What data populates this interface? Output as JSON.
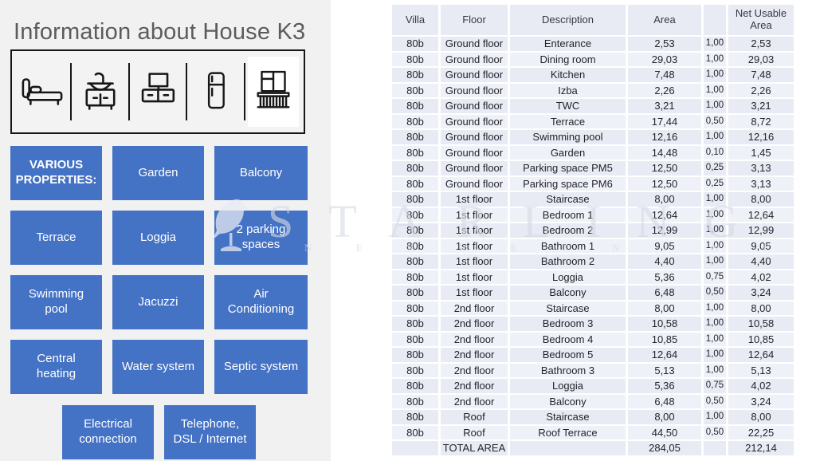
{
  "left_panel": {
    "title": "Information about House K3",
    "amenity_icons": [
      "bed-icon",
      "bathroom-vanity-icon",
      "tv-stand-icon",
      "fridge-icon",
      "balcony-icon"
    ],
    "properties_header": "VARIOUS PROPERTIES:",
    "tiles": [
      "Garden",
      "Balcony",
      "Terrace",
      "Loggia",
      "2 parking spaces",
      "Swimming pool",
      "Jacuzzi",
      "Air Conditioning",
      "Central heating",
      "Water system",
      "Septic system"
    ],
    "bottom_tiles": [
      "Electrical connection",
      "Telephone, DSL / Internet"
    ]
  },
  "watermark": {
    "brand": "STARLING",
    "subtext": "N E K R E T N I N E",
    "logo": "starling-bird-logo"
  },
  "table": {
    "headers": [
      "Villa",
      "Floor",
      "Description",
      "Area",
      "",
      "Net Usable Area"
    ],
    "rows": [
      [
        "80b",
        "Ground floor",
        "Enterance",
        "2,53",
        "1,00",
        "2,53"
      ],
      [
        "80b",
        "Ground floor",
        "Dining room",
        "29,03",
        "1,00",
        "29,03"
      ],
      [
        "80b",
        "Ground floor",
        "Kitchen",
        "7,48",
        "1,00",
        "7,48"
      ],
      [
        "80b",
        "Ground floor",
        "Izba",
        "2,26",
        "1,00",
        "2,26"
      ],
      [
        "80b",
        "Ground floor",
        "TWC",
        "3,21",
        "1,00",
        "3,21"
      ],
      [
        "80b",
        "Ground floor",
        "Terrace",
        "17,44",
        "0,50",
        "8,72"
      ],
      [
        "80b",
        "Ground floor",
        "Swimming pool",
        "12,16",
        "1,00",
        "12,16"
      ],
      [
        "80b",
        "Ground floor",
        "Garden",
        "14,48",
        "0,10",
        "1,45"
      ],
      [
        "80b",
        "Ground floor",
        "Parking space PM5",
        "12,50",
        "0,25",
        "3,13"
      ],
      [
        "80b",
        "Ground floor",
        "Parking space PM6",
        "12,50",
        "0,25",
        "3,13"
      ],
      [
        "80b",
        "1st floor",
        "Staircase",
        "8,00",
        "1,00",
        "8,00"
      ],
      [
        "80b",
        "1st floor",
        "Bedroom 1",
        "12,64",
        "1,00",
        "12,64"
      ],
      [
        "80b",
        "1st floor",
        "Bedroom 2",
        "12,99",
        "1,00",
        "12,99"
      ],
      [
        "80b",
        "1st floor",
        "Bathroom 1",
        "9,05",
        "1,00",
        "9,05"
      ],
      [
        "80b",
        "1st floor",
        "Bathroom 2",
        "4,40",
        "1,00",
        "4,40"
      ],
      [
        "80b",
        "1st floor",
        "Loggia",
        "5,36",
        "0,75",
        "4,02"
      ],
      [
        "80b",
        "1st floor",
        "Balcony",
        "6,48",
        "0,50",
        "3,24"
      ],
      [
        "80b",
        "2nd floor",
        "Staircase",
        "8,00",
        "1,00",
        "8,00"
      ],
      [
        "80b",
        "2nd floor",
        "Bedroom 3",
        "10,58",
        "1,00",
        "10,58"
      ],
      [
        "80b",
        "2nd floor",
        "Bedroom 4",
        "10,85",
        "1,00",
        "10,85"
      ],
      [
        "80b",
        "2nd floor",
        "Bedroom 5",
        "12,64",
        "1,00",
        "12,64"
      ],
      [
        "80b",
        "2nd floor",
        "Bathroom 3",
        "5,13",
        "1,00",
        "5,13"
      ],
      [
        "80b",
        "2nd floor",
        "Loggia",
        "5,36",
        "0,75",
        "4,02"
      ],
      [
        "80b",
        "2nd floor",
        "Balcony",
        "6,48",
        "0,50",
        "3,24"
      ],
      [
        "80b",
        "Roof",
        "Staircase",
        "8,00",
        "1,00",
        "8,00"
      ],
      [
        "80b",
        "Roof",
        "Roof Terrace",
        "44,50",
        "0,50",
        "22,25"
      ]
    ],
    "total_row": {
      "label": "TOTAL AREA",
      "area": "284,05",
      "net_usable_area": "212,14"
    }
  },
  "colors": {
    "accent_blue": "#4472c4",
    "panel_gray": "#f1f1f2",
    "row_blue": "#e8eaf4",
    "row_blue_alt": "#eff1f8",
    "title_gray": "#5c5c5c"
  }
}
